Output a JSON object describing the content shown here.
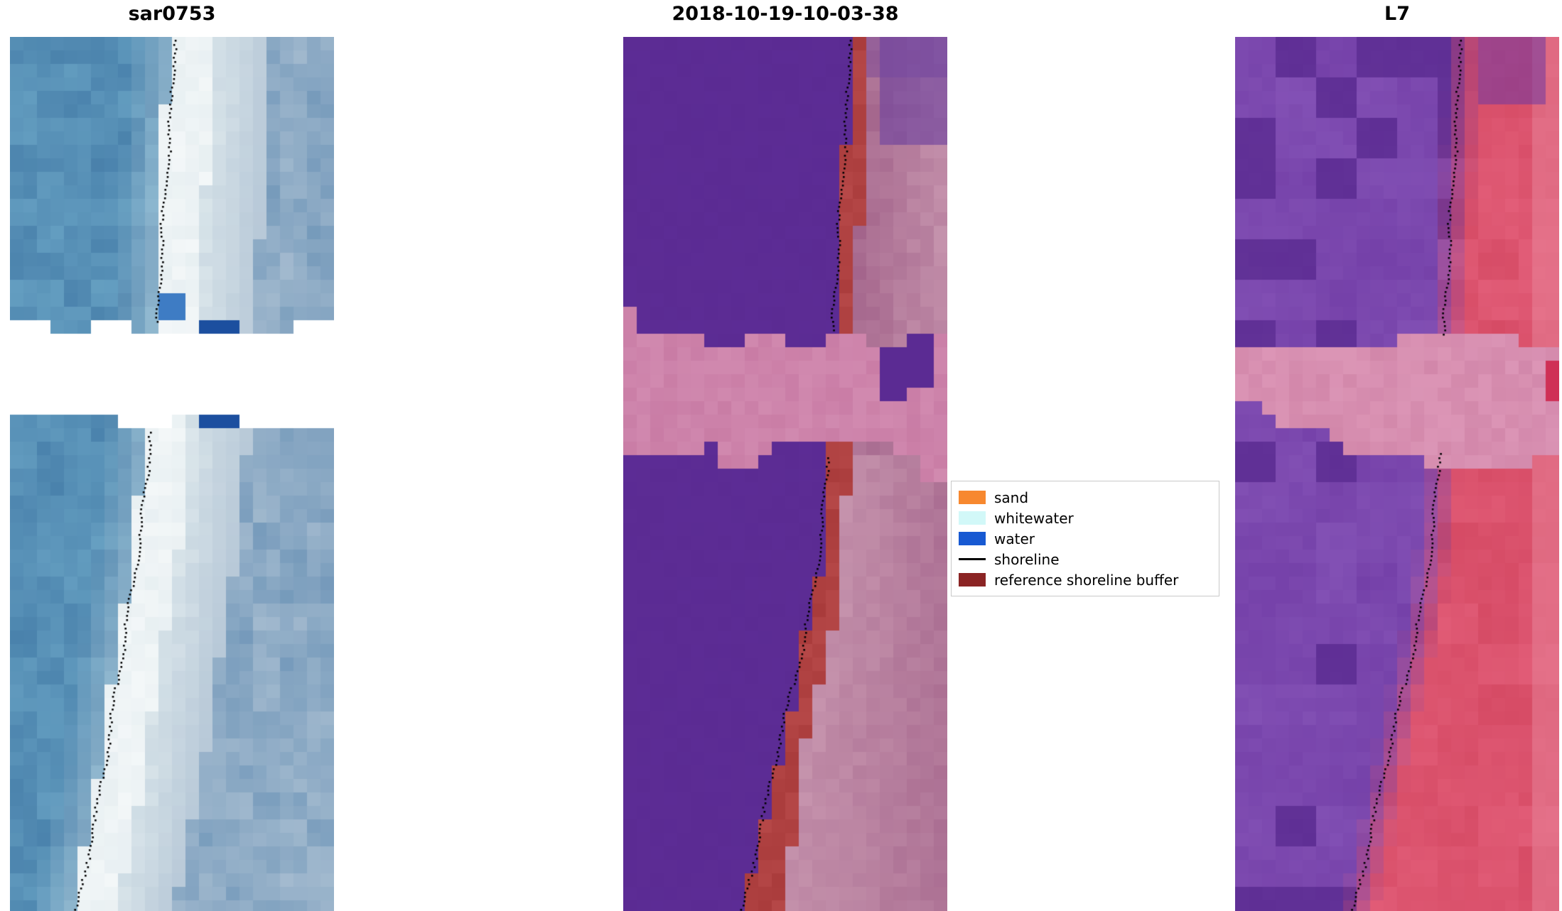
{
  "figure": {
    "background": "#ffffff",
    "panels": [
      {
        "id": "sar0753",
        "title": "sar0753"
      },
      {
        "id": "classified",
        "title": "2018-10-19-10-03-38"
      },
      {
        "id": "l7",
        "title": "L7"
      }
    ]
  },
  "legend": {
    "items": [
      {
        "label": "sand",
        "swatch": "patch",
        "color": "#f7882f"
      },
      {
        "label": "whitewater",
        "swatch": "patch",
        "color": "#d2f8f8"
      },
      {
        "label": "water",
        "swatch": "patch",
        "color": "#1759d2"
      },
      {
        "label": "shoreline",
        "swatch": "line",
        "color": "#000000"
      },
      {
        "label": "reference shoreline buffer",
        "swatch": "patch",
        "color": "#8b2424"
      }
    ]
  },
  "palettes": {
    "sar": {
      "water_dark": "#3f76a3",
      "water_light": "#66a0c2",
      "beach_white": "#f3f7f8",
      "beach_shade": "#dde8ec",
      "land_light": "#b8c9d8",
      "land_blue": "#7499ba",
      "water_bright_blue": "#3e7cc4",
      "water_deep_blue": "#1c4f9f",
      "nodata": "#ffffff"
    },
    "classified": {
      "water_purple": "#5b2b93",
      "buffer_red": "#a93b3b",
      "buffer_red2": "#b94b4b",
      "land_mauve_dark": "#a2638a",
      "land_mauve_light": "#c795ae",
      "cloud_pink": "#c97ca5",
      "cloud_pink2": "#d38db2",
      "corner_purple": "#6a3f9f"
    },
    "l7": {
      "water_purple": "#6d38a2",
      "water_purple_light": "#8351b5",
      "water_purple_dark": "#55278c",
      "land_red": "#d2455f",
      "land_red_light": "#e25d78",
      "land_pink_edge": "#e98ba0",
      "cloud_pink": "#d287aa",
      "cloud_pink2": "#de99b9",
      "band_red_cell": "#cf3056"
    },
    "shoreline": "#000000"
  },
  "chart_data": {
    "type": "heatmap",
    "subtype": "three-panel-satellite-shoreline-figure",
    "panel_titles": [
      "sar0753",
      "2018-10-19-10-03-38",
      "L7"
    ],
    "panels": [
      {
        "title": "sar0753",
        "content": "Pixelated SAR/RGB coastal image: blue-teal water on the left, bright white beach/whitewater band, grey-blue pixels to the right; white no-data gap band across the middle; dotted black detected shoreline along the left edge of the bright band"
      },
      {
        "title": "2018-10-19-10-03-38",
        "content": "Classified image: solid purple region left of the shoreline, brick-red reference-shoreline-buffer band along the coast, mauve/pink pixels to the right, pink no-data band across the middle; dotted black shoreline along the purple/red boundary"
      },
      {
        "title": "L7",
        "content": "L7 false-colour image: purple pixels left of the shoreline grading into crimson/red pixels on the right, pink no-data band across the middle; dotted black shoreline along the purple/red transition"
      }
    ],
    "legend_entries": [
      "sand",
      "whitewater",
      "water",
      "shoreline",
      "reference shoreline buffer"
    ],
    "shorelines_normalized_vu": {
      "sar0753": [
        [
          0.0,
          0.51
        ],
        [
          0.08,
          0.5
        ],
        [
          0.16,
          0.485
        ],
        [
          0.24,
          0.468
        ],
        [
          0.33,
          0.458
        ],
        [
          0.41,
          0.44
        ],
        [
          0.5,
          0.425
        ],
        [
          0.58,
          0.4
        ],
        [
          0.66,
          0.366
        ],
        [
          0.74,
          0.332
        ],
        [
          0.82,
          0.3
        ],
        [
          0.9,
          0.262
        ],
        [
          1.0,
          0.208
        ]
      ],
      "classified": [
        [
          0.0,
          0.705
        ],
        [
          0.1,
          0.695
        ],
        [
          0.2,
          0.675
        ],
        [
          0.3,
          0.658
        ],
        [
          0.4,
          0.645
        ],
        [
          0.48,
          0.636
        ],
        [
          0.56,
          0.62
        ],
        [
          0.64,
          0.59
        ],
        [
          0.72,
          0.545
        ],
        [
          0.8,
          0.49
        ],
        [
          0.88,
          0.445
        ],
        [
          0.94,
          0.41
        ],
        [
          1.0,
          0.375
        ]
      ],
      "l7": [
        [
          0.0,
          0.7
        ],
        [
          0.1,
          0.69
        ],
        [
          0.2,
          0.672
        ],
        [
          0.3,
          0.656
        ],
        [
          0.4,
          0.643
        ],
        [
          0.48,
          0.634
        ],
        [
          0.56,
          0.618
        ],
        [
          0.64,
          0.588
        ],
        [
          0.72,
          0.543
        ],
        [
          0.8,
          0.49
        ],
        [
          0.88,
          0.443
        ],
        [
          0.94,
          0.408
        ],
        [
          1.0,
          0.372
        ]
      ]
    },
    "nodata_band_v": {
      "sar0753": [
        0.345,
        0.425
      ],
      "classified": [
        0.337,
        0.465
      ],
      "l7": [
        0.34,
        0.47
      ]
    }
  }
}
